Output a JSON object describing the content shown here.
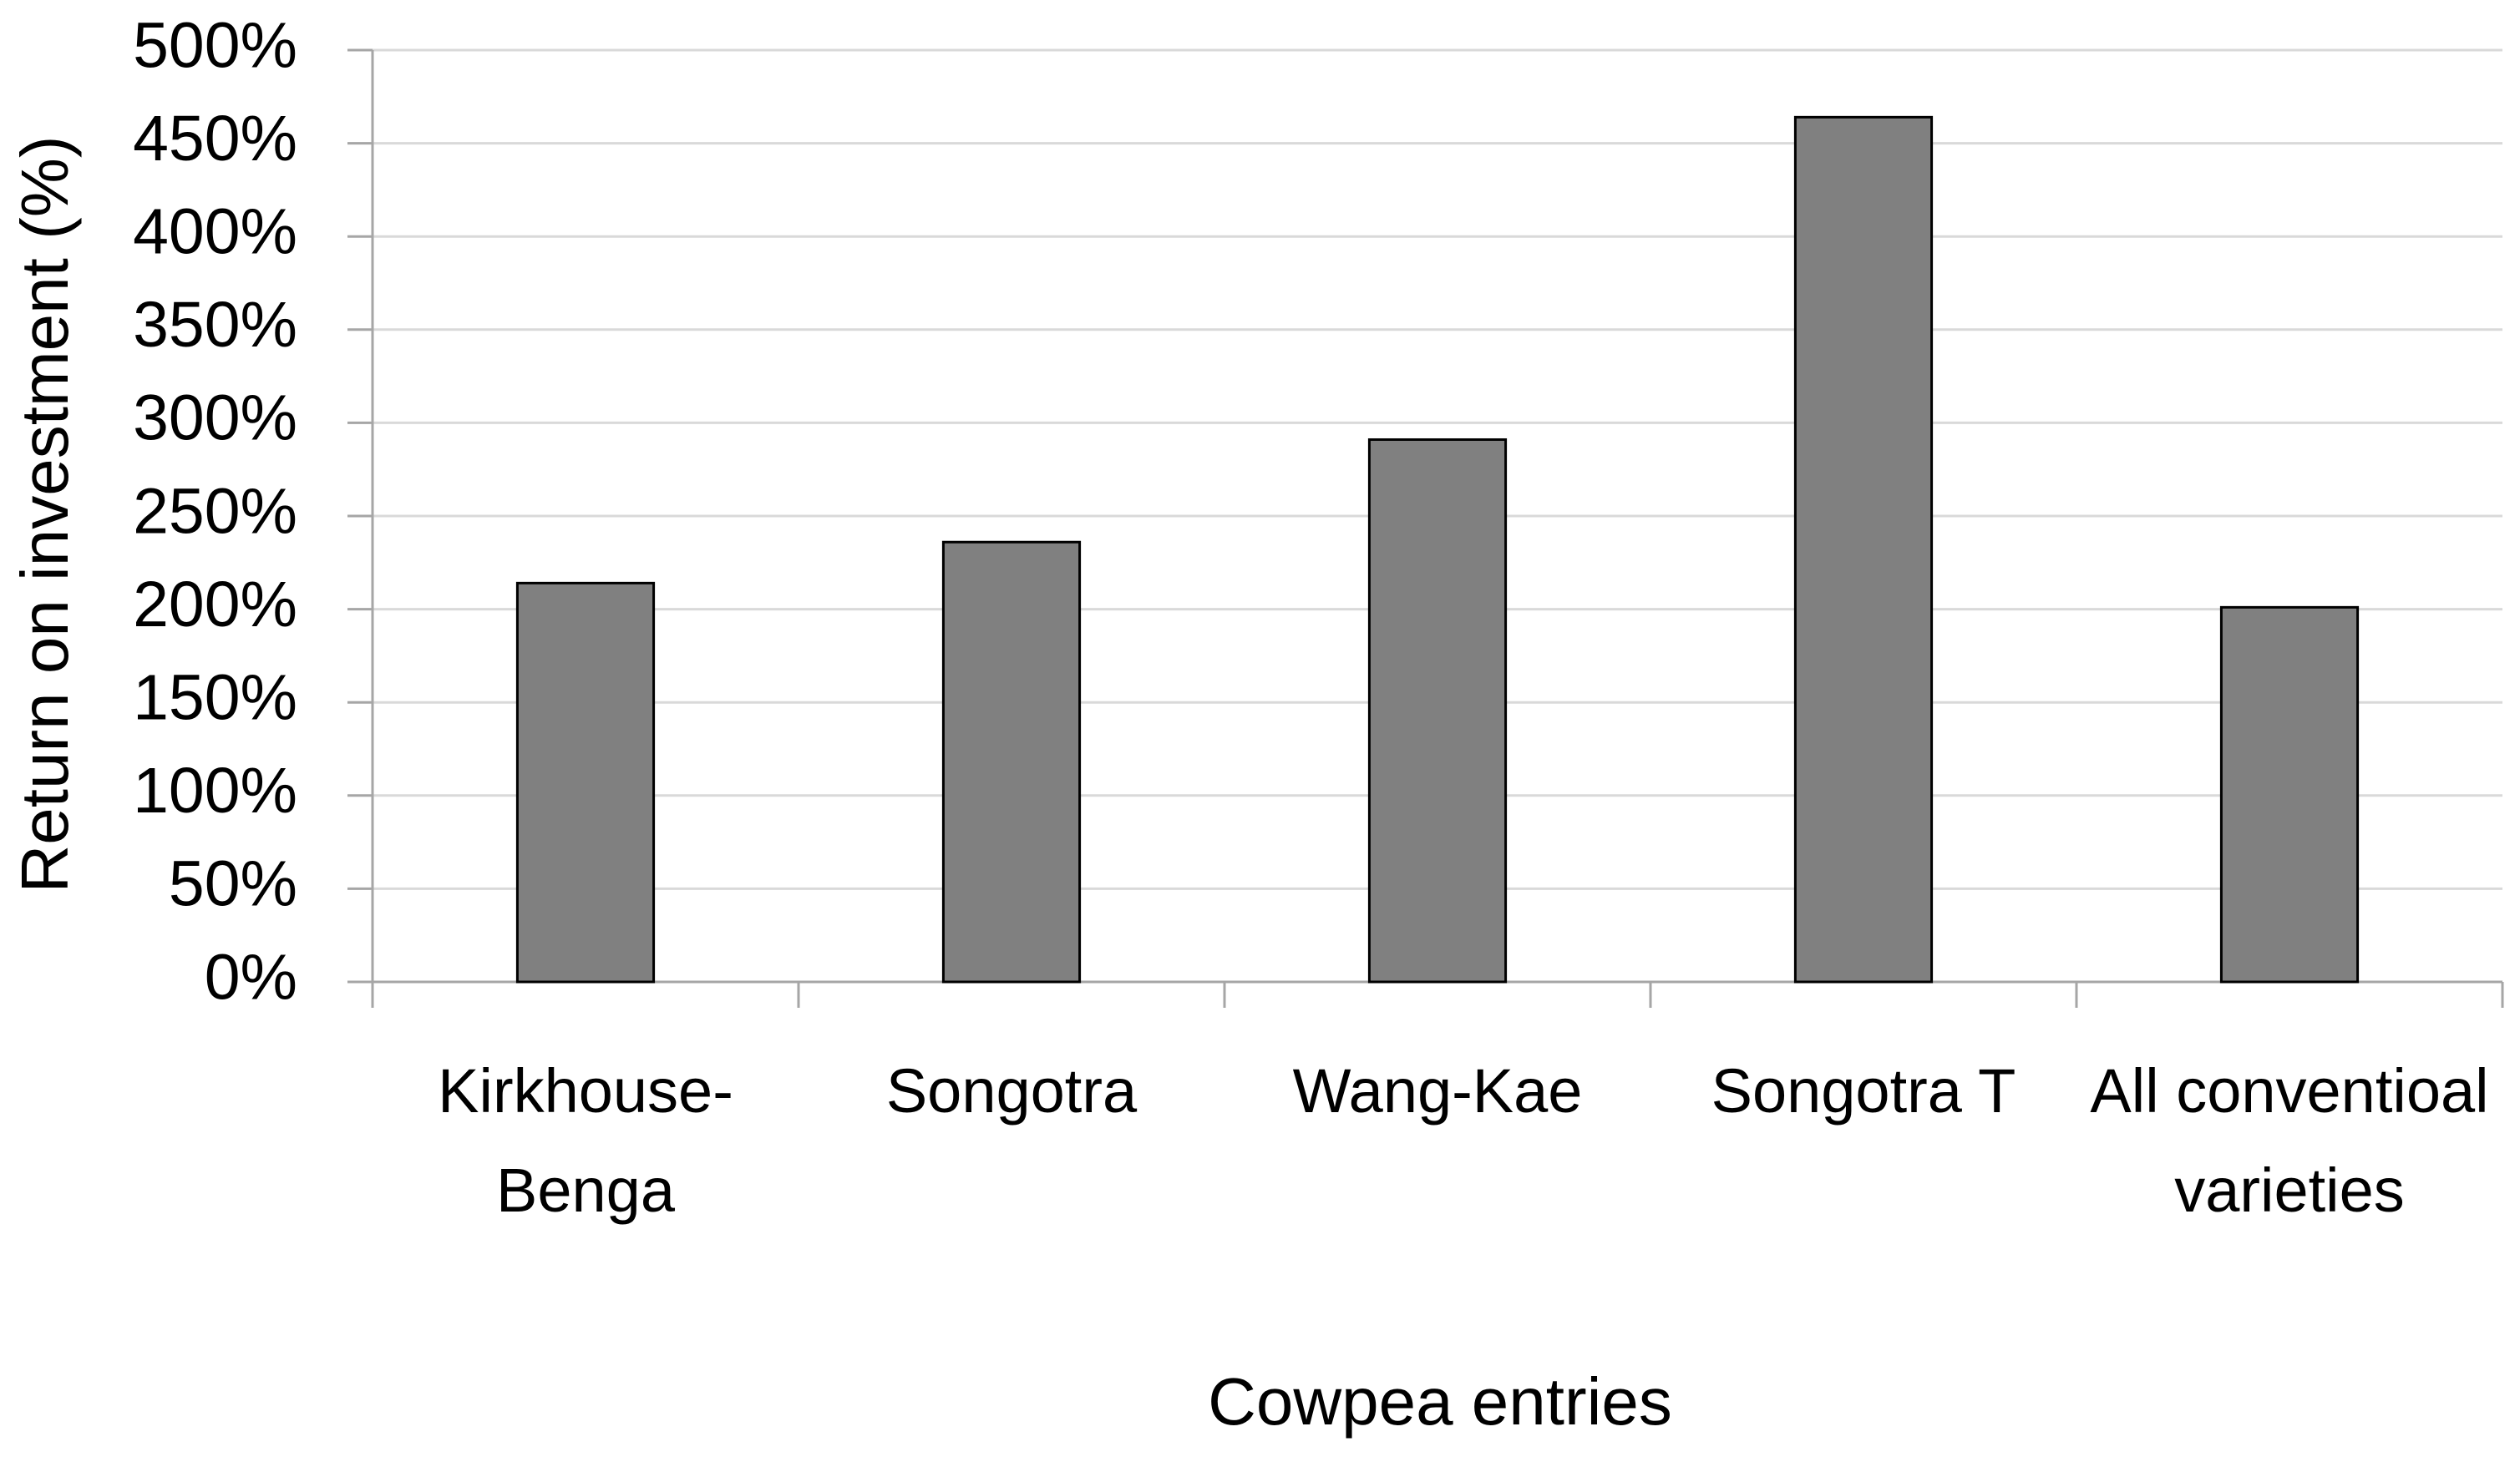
{
  "chart_data": {
    "type": "bar",
    "categories": [
      "Kirkhouse-Benga",
      "Songotra",
      "Wang-Kae",
      "Songotra T",
      "All conventioal varieties"
    ],
    "values": [
      214,
      236,
      291,
      464,
      201
    ],
    "color": "#808080",
    "x_label": "Cowpea entries",
    "y_label": "Return on investment (%)",
    "ylim": [
      0,
      500
    ],
    "yticks": [
      {
        "value": 0,
        "label": "0%"
      },
      {
        "value": 50,
        "label": "50%"
      },
      {
        "value": 100,
        "label": "100%"
      },
      {
        "value": 150,
        "label": "150%"
      },
      {
        "value": 200,
        "label": "200%"
      },
      {
        "value": 250,
        "label": "250%"
      },
      {
        "value": 300,
        "label": "300%"
      },
      {
        "value": 350,
        "label": "350%"
      },
      {
        "value": 400,
        "label": "400%"
      },
      {
        "value": 450,
        "label": "450%"
      },
      {
        "value": 500,
        "label": "500%"
      }
    ],
    "grid": true
  }
}
